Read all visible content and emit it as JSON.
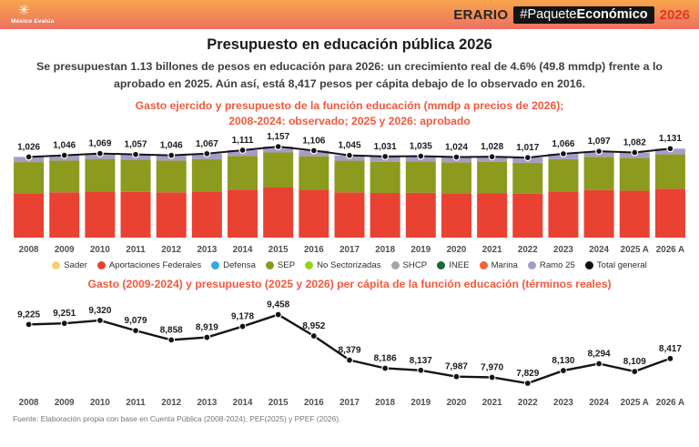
{
  "header": {
    "logo_text": "México Evalúa",
    "logo_mark": "✳",
    "brand_prefix": "ERARIO",
    "hashtag_normal": "#Paquete",
    "hashtag_bold": "Económico",
    "year": "2026",
    "gradient_top": "#F7A54D",
    "gradient_bottom": "#EE6F61",
    "year_color": "#E0362A"
  },
  "page": {
    "title": "Presupuesto en educación pública 2026",
    "subtitle": "Se presupuestan 1.13 billones de pesos en educación para 2026: un crecimiento real de 4.6% (49.8 mmdp) frente a lo aprobado en 2025. Aún así, está 8,417 pesos per cápita debajo de lo observado en 2016.",
    "source": "Fuente: Elaboración propia con base en Cuenta Pública (2008-2024), PEF(2025) y PPEF (2026)."
  },
  "chart_data": [
    {
      "type": "bar",
      "stacked": true,
      "title_lines": [
        "Gasto ejercido y presupuesto de la función educación (mmdp a precios de 2026);",
        "2008-2024: observado; 2025 y 2026: aprobado"
      ],
      "categories": [
        "2008",
        "2009",
        "2010",
        "2011",
        "2012",
        "2013",
        "2014",
        "2015",
        "2016",
        "2017",
        "2018",
        "2019",
        "2020",
        "2021",
        "2022",
        "2023",
        "2024",
        "2025 A",
        "2026 A"
      ],
      "values": [
        1026,
        1046,
        1069,
        1057,
        1046,
        1067,
        1111,
        1157,
        1106,
        1045,
        1031,
        1035,
        1024,
        1028,
        1017,
        1066,
        1097,
        1082,
        1131
      ],
      "value_labels": [
        "1,026",
        "1,046",
        "1,069",
        "1,057",
        "1,046",
        "1,067",
        "1,111",
        "1,157",
        "1,106",
        "1,045",
        "1,031",
        "1,035",
        "1,024",
        "1,028",
        "1,017",
        "1,066",
        "1,097",
        "1,082",
        "1,131"
      ],
      "ylim": [
        0,
        1200
      ],
      "stack_fractions": [
        {
          "name": "Aportaciones Federales",
          "color": "#E94132",
          "fraction": 0.55
        },
        {
          "name": "SEP",
          "color": "#8C9A1E",
          "fraction": 0.385
        },
        {
          "name": "Ramo 25",
          "color": "#A89CC7",
          "fraction": 0.065
        }
      ],
      "overlay_line": {
        "name": "Total general",
        "color": "#141414"
      },
      "legend": [
        {
          "label": "Sader",
          "color": "#F3D170"
        },
        {
          "label": "Aportaciones Federales",
          "color": "#E94132"
        },
        {
          "label": "Defensa",
          "color": "#35A8DF"
        },
        {
          "label": "SEP",
          "color": "#8C9A1E"
        },
        {
          "label": "No Sectorizadas",
          "color": "#93D41D"
        },
        {
          "label": "SHCP",
          "color": "#A6A6A6"
        },
        {
          "label": "INEE",
          "color": "#156B33"
        },
        {
          "label": "Marina",
          "color": "#F2633C"
        },
        {
          "label": "Ramo 25",
          "color": "#A89CC7"
        },
        {
          "label": "Total general",
          "color": "#101010"
        }
      ]
    },
    {
      "type": "line",
      "title": "Gasto (2009-2024) y presupuesto (2025 y 2026) per cápita de la función educación (términos reales)",
      "categories": [
        "2008",
        "2009",
        "2010",
        "2011",
        "2012",
        "2013",
        "2014",
        "2015",
        "2016",
        "2017",
        "2018",
        "2019",
        "2020",
        "2021",
        "2022",
        "2023",
        "2024",
        "2025 A",
        "2026 A"
      ],
      "values": [
        9225,
        9251,
        9320,
        9079,
        8858,
        8919,
        9178,
        9458,
        8952,
        8379,
        8186,
        8137,
        7987,
        7970,
        7829,
        8130,
        8294,
        8109,
        8417
      ],
      "value_labels": [
        "9,225",
        "9,251",
        "9,320",
        "9,079",
        "8,858",
        "8,919",
        "9,178",
        "9,458",
        "8,952",
        "8,379",
        "8,186",
        "8,137",
        "7,987",
        "7,970",
        "7,829",
        "8,130",
        "8,294",
        "8,109",
        "8,417"
      ],
      "ylim": [
        7700,
        9600
      ],
      "color": "#141414"
    }
  ]
}
